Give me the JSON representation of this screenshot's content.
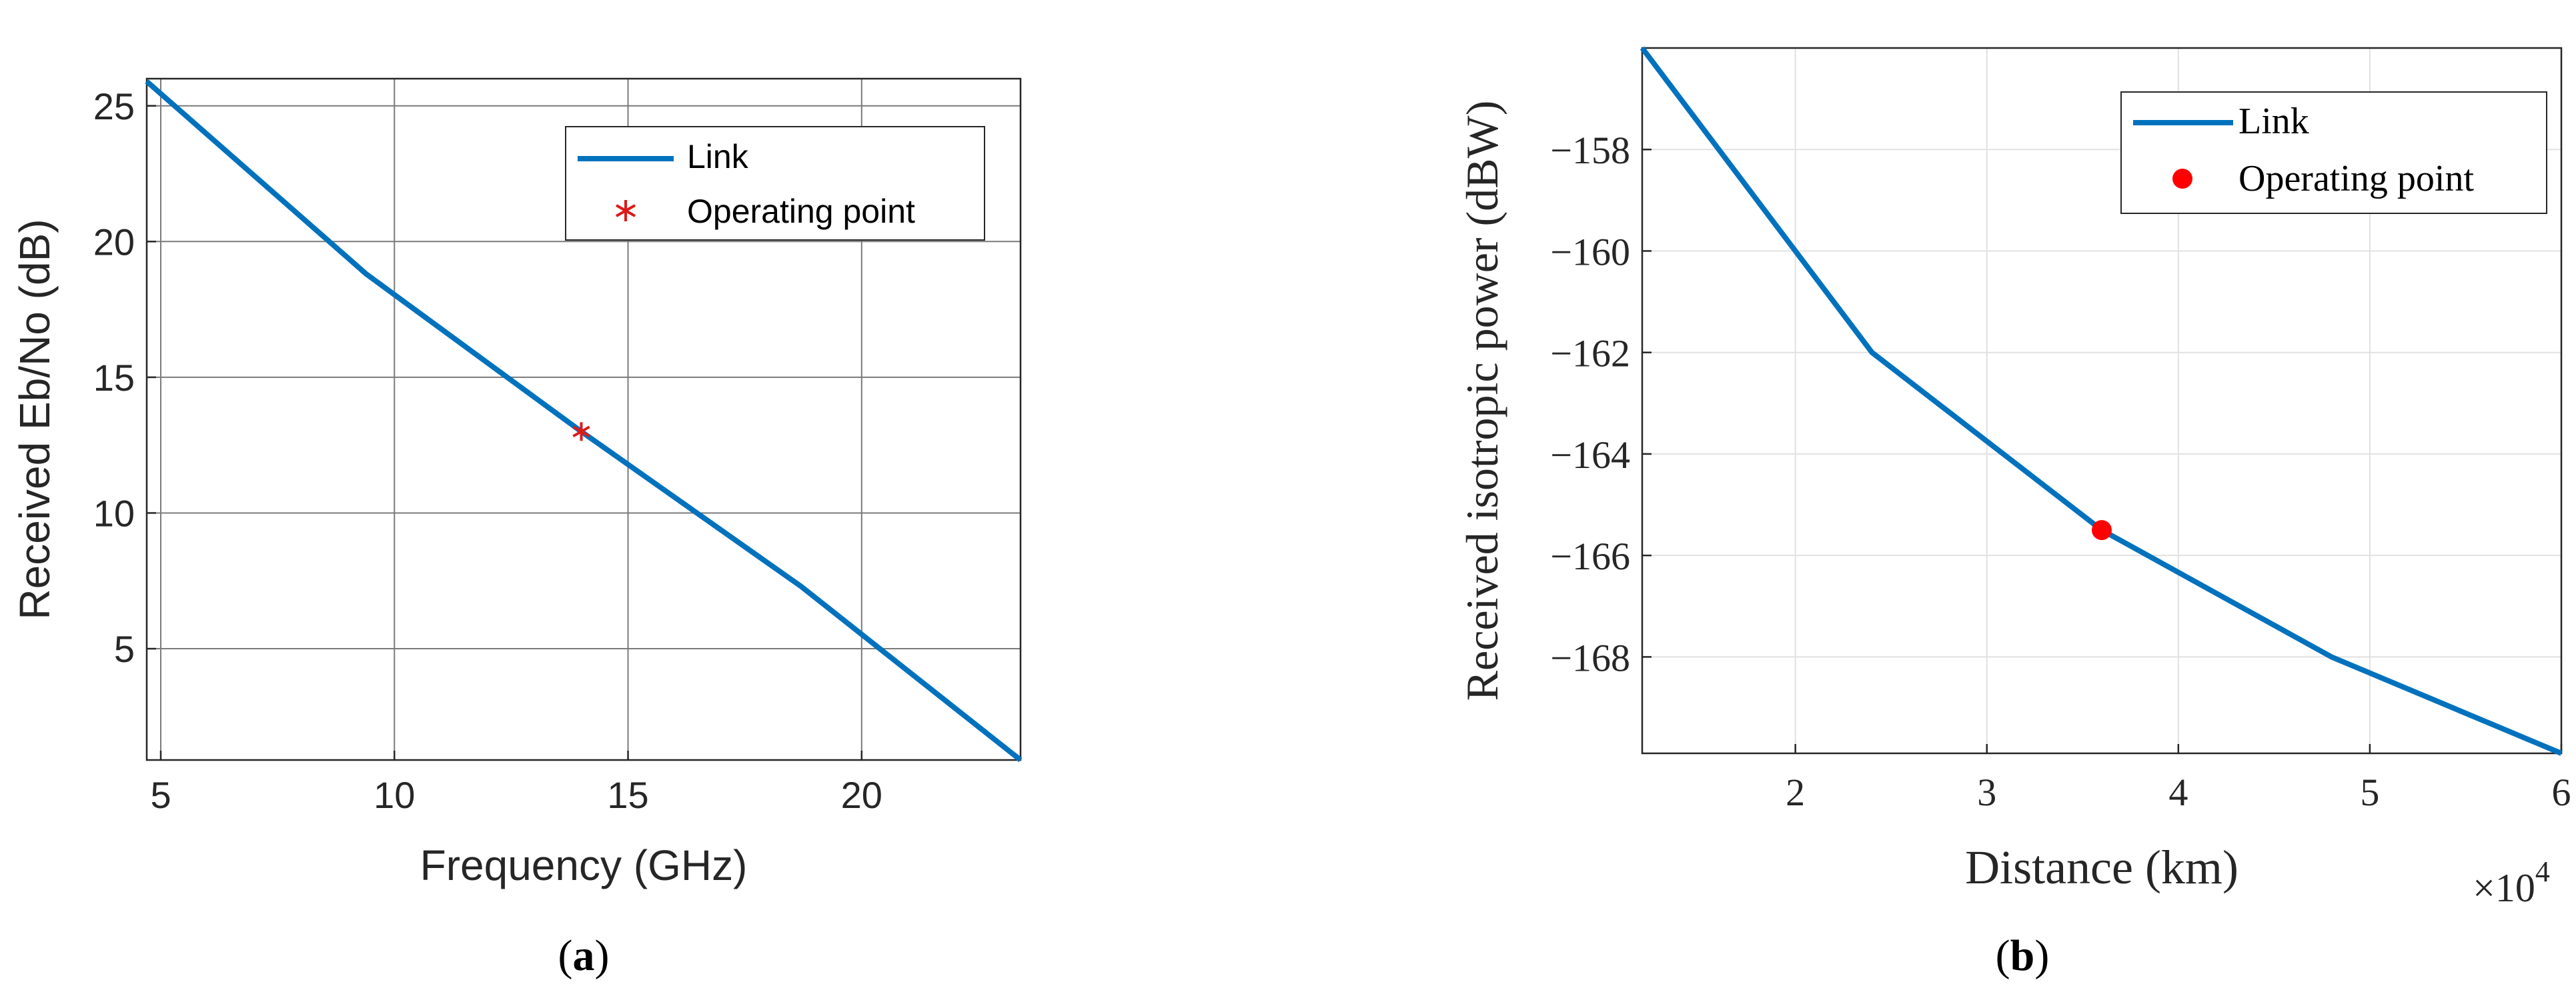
{
  "chart_data": [
    {
      "type": "line",
      "panel_label": {
        "open": "(",
        "letter": "a",
        "close": ")"
      },
      "xlabel": "Frequency (GHz)",
      "ylabel": "Received Eb/No (dB)",
      "xlim": [
        4.7,
        23.4
      ],
      "ylim": [
        0.9,
        26.0
      ],
      "x_ticks": [
        5,
        10,
        15,
        20
      ],
      "y_ticks": [
        5,
        10,
        15,
        20,
        25
      ],
      "grid": true,
      "legend_position": "top-right",
      "series": [
        {
          "name": "Link",
          "color": "#0072BD",
          "x": [
            4.7,
            9.4,
            14.0,
            18.7,
            23.4
          ],
          "y": [
            25.9,
            18.8,
            13.0,
            7.3,
            0.9
          ]
        },
        {
          "name": "Operating point",
          "marker": "asterisk",
          "color": "#DD1A1A",
          "x": [
            14.0
          ],
          "y": [
            13.0
          ]
        }
      ]
    },
    {
      "type": "line",
      "panel_label": {
        "open": "(",
        "letter": "b",
        "close": ")"
      },
      "xlabel": "Distance (km)",
      "ylabel": "Received isotropic power (dBW)",
      "x_multiplier": {
        "base": "×10",
        "exponent": "4"
      },
      "xlim": [
        1.2,
        6.0
      ],
      "ylim": [
        -169.9,
        -156.0
      ],
      "x_ticks": [
        2,
        3,
        4,
        5,
        6
      ],
      "y_ticks": [
        -158,
        -160,
        -162,
        -164,
        -166,
        -168
      ],
      "grid": true,
      "legend_position": "top-right",
      "series": [
        {
          "name": "Link",
          "color": "#0072BD",
          "x": [
            1.2,
            2.4,
            3.6,
            4.8,
            6.0
          ],
          "y": [
            -156.0,
            -162.0,
            -165.5,
            -168.0,
            -169.9
          ]
        },
        {
          "name": "Operating point",
          "marker": "dot",
          "color": "#FF0000",
          "x": [
            3.6
          ],
          "y": [
            -165.5
          ]
        }
      ]
    }
  ]
}
